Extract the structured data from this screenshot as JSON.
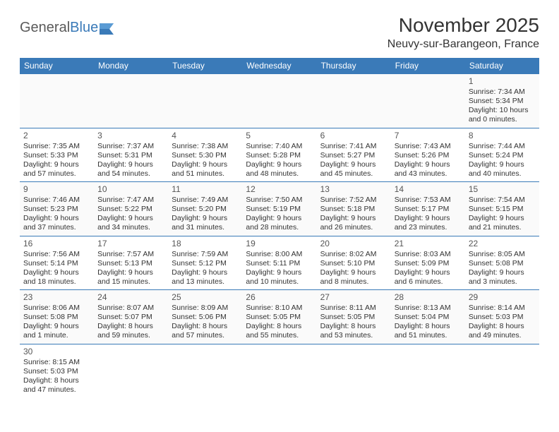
{
  "brand": {
    "part1": "General",
    "part2": "Blue"
  },
  "title": "November 2025",
  "location": "Neuvy-sur-Barangeon, France",
  "colors": {
    "header_bg": "#3a7ab8",
    "header_fg": "#ffffff",
    "border": "#3a7ab8",
    "text": "#333333"
  },
  "weekdays": [
    "Sunday",
    "Monday",
    "Tuesday",
    "Wednesday",
    "Thursday",
    "Friday",
    "Saturday"
  ],
  "weeks": [
    [
      null,
      null,
      null,
      null,
      null,
      null,
      {
        "d": "1",
        "sr": "7:34 AM",
        "ss": "5:34 PM",
        "dl1": "10 hours",
        "dl2": "and 0 minutes."
      }
    ],
    [
      {
        "d": "2",
        "sr": "7:35 AM",
        "ss": "5:33 PM",
        "dl1": "9 hours",
        "dl2": "and 57 minutes."
      },
      {
        "d": "3",
        "sr": "7:37 AM",
        "ss": "5:31 PM",
        "dl1": "9 hours",
        "dl2": "and 54 minutes."
      },
      {
        "d": "4",
        "sr": "7:38 AM",
        "ss": "5:30 PM",
        "dl1": "9 hours",
        "dl2": "and 51 minutes."
      },
      {
        "d": "5",
        "sr": "7:40 AM",
        "ss": "5:28 PM",
        "dl1": "9 hours",
        "dl2": "and 48 minutes."
      },
      {
        "d": "6",
        "sr": "7:41 AM",
        "ss": "5:27 PM",
        "dl1": "9 hours",
        "dl2": "and 45 minutes."
      },
      {
        "d": "7",
        "sr": "7:43 AM",
        "ss": "5:26 PM",
        "dl1": "9 hours",
        "dl2": "and 43 minutes."
      },
      {
        "d": "8",
        "sr": "7:44 AM",
        "ss": "5:24 PM",
        "dl1": "9 hours",
        "dl2": "and 40 minutes."
      }
    ],
    [
      {
        "d": "9",
        "sr": "7:46 AM",
        "ss": "5:23 PM",
        "dl1": "9 hours",
        "dl2": "and 37 minutes."
      },
      {
        "d": "10",
        "sr": "7:47 AM",
        "ss": "5:22 PM",
        "dl1": "9 hours",
        "dl2": "and 34 minutes."
      },
      {
        "d": "11",
        "sr": "7:49 AM",
        "ss": "5:20 PM",
        "dl1": "9 hours",
        "dl2": "and 31 minutes."
      },
      {
        "d": "12",
        "sr": "7:50 AM",
        "ss": "5:19 PM",
        "dl1": "9 hours",
        "dl2": "and 28 minutes."
      },
      {
        "d": "13",
        "sr": "7:52 AM",
        "ss": "5:18 PM",
        "dl1": "9 hours",
        "dl2": "and 26 minutes."
      },
      {
        "d": "14",
        "sr": "7:53 AM",
        "ss": "5:17 PM",
        "dl1": "9 hours",
        "dl2": "and 23 minutes."
      },
      {
        "d": "15",
        "sr": "7:54 AM",
        "ss": "5:15 PM",
        "dl1": "9 hours",
        "dl2": "and 21 minutes."
      }
    ],
    [
      {
        "d": "16",
        "sr": "7:56 AM",
        "ss": "5:14 PM",
        "dl1": "9 hours",
        "dl2": "and 18 minutes."
      },
      {
        "d": "17",
        "sr": "7:57 AM",
        "ss": "5:13 PM",
        "dl1": "9 hours",
        "dl2": "and 15 minutes."
      },
      {
        "d": "18",
        "sr": "7:59 AM",
        "ss": "5:12 PM",
        "dl1": "9 hours",
        "dl2": "and 13 minutes."
      },
      {
        "d": "19",
        "sr": "8:00 AM",
        "ss": "5:11 PM",
        "dl1": "9 hours",
        "dl2": "and 10 minutes."
      },
      {
        "d": "20",
        "sr": "8:02 AM",
        "ss": "5:10 PM",
        "dl1": "9 hours",
        "dl2": "and 8 minutes."
      },
      {
        "d": "21",
        "sr": "8:03 AM",
        "ss": "5:09 PM",
        "dl1": "9 hours",
        "dl2": "and 6 minutes."
      },
      {
        "d": "22",
        "sr": "8:05 AM",
        "ss": "5:08 PM",
        "dl1": "9 hours",
        "dl2": "and 3 minutes."
      }
    ],
    [
      {
        "d": "23",
        "sr": "8:06 AM",
        "ss": "5:08 PM",
        "dl1": "9 hours",
        "dl2": "and 1 minute."
      },
      {
        "d": "24",
        "sr": "8:07 AM",
        "ss": "5:07 PM",
        "dl1": "8 hours",
        "dl2": "and 59 minutes."
      },
      {
        "d": "25",
        "sr": "8:09 AM",
        "ss": "5:06 PM",
        "dl1": "8 hours",
        "dl2": "and 57 minutes."
      },
      {
        "d": "26",
        "sr": "8:10 AM",
        "ss": "5:05 PM",
        "dl1": "8 hours",
        "dl2": "and 55 minutes."
      },
      {
        "d": "27",
        "sr": "8:11 AM",
        "ss": "5:05 PM",
        "dl1": "8 hours",
        "dl2": "and 53 minutes."
      },
      {
        "d": "28",
        "sr": "8:13 AM",
        "ss": "5:04 PM",
        "dl1": "8 hours",
        "dl2": "and 51 minutes."
      },
      {
        "d": "29",
        "sr": "8:14 AM",
        "ss": "5:03 PM",
        "dl1": "8 hours",
        "dl2": "and 49 minutes."
      }
    ],
    [
      {
        "d": "30",
        "sr": "8:15 AM",
        "ss": "5:03 PM",
        "dl1": "8 hours",
        "dl2": "and 47 minutes."
      },
      null,
      null,
      null,
      null,
      null,
      null
    ]
  ],
  "labels": {
    "sunrise": "Sunrise:",
    "sunset": "Sunset:",
    "daylight": "Daylight:"
  }
}
